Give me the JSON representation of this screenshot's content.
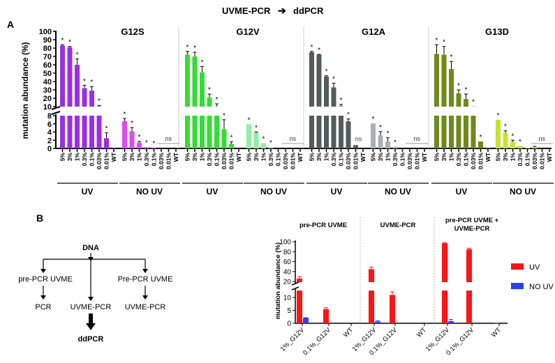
{
  "header": {
    "left": "UVME-PCR",
    "arrow": "➔",
    "right": "ddPCR"
  },
  "panel_labels": {
    "a": "A",
    "b": "B"
  },
  "diagram": {
    "root": "DNA",
    "left_step": "pre-PCR UVME",
    "left_end": "PCR",
    "middle_end": "UVME-PCR",
    "right_step": "Pre-PCR UVME",
    "right_end": "UVME-PCR",
    "final": "ddPCR"
  },
  "chart_data": [
    {
      "type": "bar",
      "ylabel": "mutation abundance (%)",
      "yticks_upper": [
        10,
        20,
        30,
        40,
        50,
        60,
        70,
        80,
        90,
        100
      ],
      "yticks_lower": [
        0,
        2,
        4,
        6,
        8
      ],
      "axis_break": [
        8,
        10
      ],
      "ylim": [
        0,
        100
      ],
      "categories": [
        "5%",
        "3%",
        "1%",
        "0.3%",
        "0.1%",
        "0.03%",
        "0.01%",
        "WT"
      ],
      "group_labels": {
        "uv": "UV",
        "no_uv": "NO UV"
      },
      "sig_label": "*",
      "ns_label": "ns",
      "panels": [
        {
          "title": "G12S",
          "colors": {
            "uv": "#9a2fe4",
            "no_uv": "#dd4af2"
          },
          "uv": [
            83,
            81,
            60,
            32,
            29,
            10.5,
            2.5,
            0.2
          ],
          "uv_err": [
            1,
            1,
            7,
            3.5,
            5,
            1,
            1.3,
            0
          ],
          "uv_sig": [
            1,
            1,
            1,
            1,
            1,
            1,
            1,
            0
          ],
          "uv_ns": false,
          "no_uv": [
            6.7,
            4.2,
            1.4,
            0.3,
            0.2,
            0,
            0,
            0
          ],
          "no_uv_err": [
            0.6,
            0.9,
            0.3,
            0,
            0,
            0,
            0,
            0
          ],
          "no_uv_sig": [
            1,
            1,
            1,
            1,
            1,
            0,
            0,
            0
          ],
          "no_uv_ns": true
        },
        {
          "title": "G12V",
          "colors": {
            "uv": "#33dd33",
            "no_uv": "#8ef0a0"
          },
          "uv": [
            72,
            70,
            51,
            21,
            10,
            4.7,
            1.1,
            0
          ],
          "uv_err": [
            4,
            5,
            7,
            4,
            3,
            2.3,
            0.5,
            0
          ],
          "uv_sig": [
            1,
            1,
            1,
            1,
            1,
            1,
            1,
            0
          ],
          "uv_ns": false,
          "no_uv": [
            5.9,
            3.8,
            1.3,
            0.3,
            0,
            0,
            0,
            0
          ],
          "no_uv_err": [
            0,
            0.2,
            0,
            0,
            0,
            0,
            0,
            0
          ],
          "no_uv_sig": [
            1,
            1,
            1,
            1,
            0,
            0,
            0,
            0
          ],
          "no_uv_ns": true
        },
        {
          "title": "G12A",
          "colors": {
            "uv": "#525c5c",
            "no_uv": "#a6b1b6"
          },
          "uv": [
            75,
            72,
            46,
            33,
            10.5,
            6.6,
            0.8,
            0
          ],
          "uv_err": [
            1,
            0.5,
            1,
            5,
            2,
            0.6,
            0,
            0
          ],
          "uv_sig": [
            1,
            1,
            1,
            1,
            1,
            1,
            0,
            0
          ],
          "uv_ns": true,
          "uv_ns_index": 6,
          "no_uv": [
            6.1,
            3.2,
            1.7,
            0.4,
            0,
            0,
            0,
            0
          ],
          "no_uv_err": [
            0,
            0.9,
            0.9,
            0,
            0,
            0,
            0,
            0
          ],
          "no_uv_sig": [
            1,
            1,
            1,
            1,
            0,
            0,
            0,
            0
          ],
          "no_uv_ns": true
        },
        {
          "title": "G13D",
          "colors": {
            "uv": "#6d8a1a",
            "no_uv": "#c9e22e"
          },
          "uv": [
            73,
            72,
            55,
            26,
            19,
            10,
            1.7,
            0.2
          ],
          "uv_err": [
            11,
            10,
            9,
            4,
            6,
            0,
            0,
            0
          ],
          "uv_sig": [
            1,
            1,
            1,
            1,
            1,
            1,
            1,
            0
          ],
          "uv_ns": false,
          "no_uv": [
            7.0,
            3.8,
            1.6,
            0.6,
            0.2,
            0.3,
            0,
            0
          ],
          "no_uv_err": [
            0,
            0.5,
            0.4,
            0,
            0,
            0.2,
            0,
            0
          ],
          "no_uv_sig": [
            1,
            1,
            1,
            1,
            0,
            0,
            0,
            0
          ],
          "no_uv_ns": true
        }
      ]
    },
    {
      "type": "bar",
      "ylabel": "mutation abundance (%)",
      "yticks_upper": [
        20,
        40,
        60,
        80,
        100
      ],
      "yticks_lower": [
        0,
        5,
        10
      ],
      "axis_break": [
        12.5,
        20
      ],
      "ylim": [
        0,
        100
      ],
      "groups": [
        {
          "title": [
            "pre-PCR UVME"
          ],
          "categories": [
            "1%_G12V",
            "0.1%_G12V",
            "WT"
          ],
          "uv": [
            26,
            5.5,
            0
          ],
          "uv_err": [
            4,
            0.5,
            0
          ],
          "no_uv": [
            2.1,
            0,
            0
          ],
          "no_uv_err": [
            0.1,
            0,
            0
          ]
        },
        {
          "title": [
            "UVME-PCR"
          ],
          "categories": [
            "1%_G12V",
            "0.1%_G12V",
            "WT"
          ],
          "uv": [
            45,
            11,
            0
          ],
          "uv_err": [
            4,
            1.2,
            0
          ],
          "no_uv": [
            0.7,
            0,
            0
          ],
          "no_uv_err": [
            0.3,
            0,
            0
          ]
        },
        {
          "title": [
            "pre-PCR UVME +",
            "UVME-PCR"
          ],
          "categories": [
            "1%_G12V",
            "0.1%_G12V",
            "WT"
          ],
          "uv": [
            97,
            85,
            0.2
          ],
          "uv_err": [
            1,
            2,
            0
          ],
          "no_uv": [
            0.8,
            0,
            0
          ],
          "no_uv_err": [
            0.7,
            0,
            0
          ]
        }
      ],
      "series": [
        {
          "name": "UV",
          "color": "#ff1414"
        },
        {
          "name": "NO UV",
          "color": "#2a3ff0"
        }
      ],
      "legend": "right"
    }
  ]
}
